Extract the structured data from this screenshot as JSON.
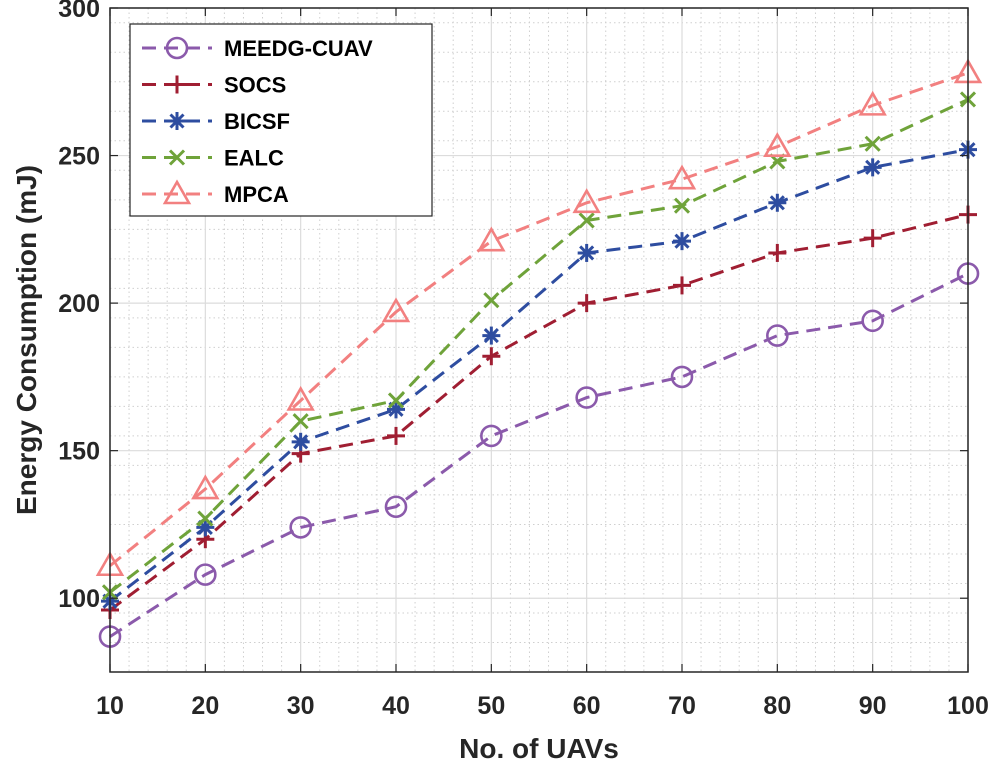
{
  "chart_data": {
    "type": "line",
    "xlabel": "No. of UAVs",
    "ylabel": "Energy Consumption (mJ)",
    "x": [
      10,
      20,
      30,
      40,
      50,
      60,
      70,
      80,
      90,
      100
    ],
    "xlim": [
      10,
      100
    ],
    "ylim": [
      75,
      300
    ],
    "x_ticks": [
      "10",
      "20",
      "30",
      "40",
      "50",
      "60",
      "70",
      "80",
      "90",
      "100"
    ],
    "y_ticks": [
      "100",
      "150",
      "200",
      "250",
      "300"
    ],
    "grid": true,
    "minor_grid": true,
    "legend_position": "top-left",
    "series": [
      {
        "name": "MEEDG-CUAV",
        "color": "#8B5AAB",
        "marker": "circle",
        "values": [
          87,
          108,
          124,
          131,
          155,
          168,
          175,
          189,
          194,
          210
        ]
      },
      {
        "name": "SOCS",
        "color": "#A01E32",
        "marker": "plus",
        "values": [
          96,
          120,
          149,
          155,
          182,
          200,
          206,
          217,
          222,
          230
        ]
      },
      {
        "name": "BICSF",
        "color": "#2E4DA0",
        "marker": "asterisk",
        "values": [
          99,
          124,
          153,
          164,
          189,
          217,
          221,
          234,
          246,
          252
        ]
      },
      {
        "name": "EALC",
        "color": "#6FA33A",
        "marker": "x",
        "values": [
          102,
          127,
          160,
          167,
          201,
          228,
          233,
          248,
          254,
          269
        ]
      },
      {
        "name": "MPCA",
        "color": "#F28080",
        "marker": "triangle",
        "values": [
          111,
          137,
          167,
          197,
          221,
          234,
          242,
          253,
          267,
          278
        ]
      }
    ]
  }
}
